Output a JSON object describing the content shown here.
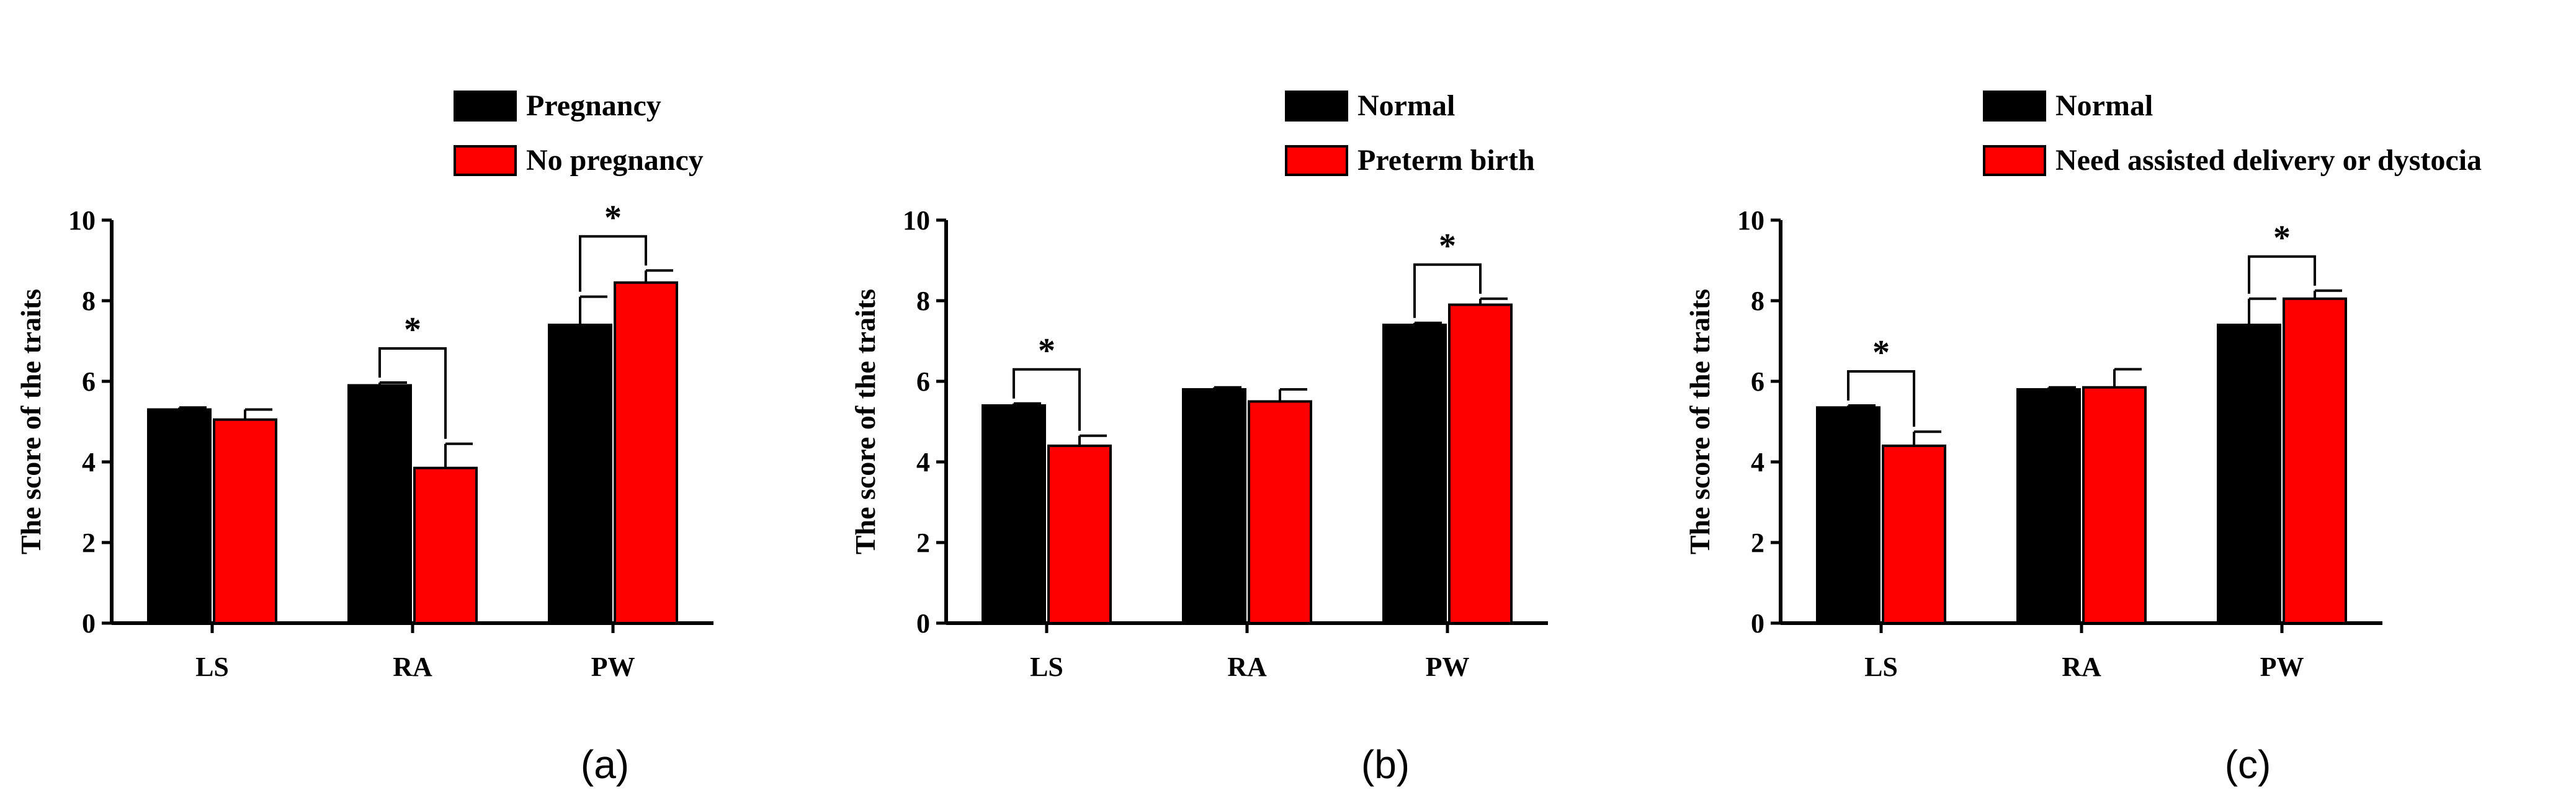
{
  "colors": {
    "series1": "#000000",
    "series2": "#ff0000",
    "axis": "#000000"
  },
  "chart_data": [
    {
      "type": "bar",
      "panel_label": "(a)",
      "ylabel": "The score of the traits",
      "ylim": [
        0,
        10
      ],
      "yticks": [
        "0",
        "2",
        "4",
        "6",
        "8",
        "10"
      ],
      "categories": [
        "LS",
        "RA",
        "PW"
      ],
      "series": [
        {
          "name": "Pregnancy",
          "values": [
            5.3,
            5.9,
            7.4
          ],
          "errors": [
            0.05,
            0.07,
            0.7
          ]
        },
        {
          "name": "No pregnancy",
          "values": [
            5.05,
            3.85,
            8.45
          ],
          "errors": [
            0.25,
            0.6,
            0.3
          ]
        }
      ],
      "significance": [
        {
          "category": "RA",
          "label": "*"
        },
        {
          "category": "PW",
          "label": "*"
        }
      ],
      "legend_position": "top-right"
    },
    {
      "type": "bar",
      "panel_label": "(b)",
      "ylabel": "The score of the traits",
      "ylim": [
        0,
        10
      ],
      "yticks": [
        "0",
        "2",
        "4",
        "6",
        "8",
        "10"
      ],
      "categories": [
        "LS",
        "RA",
        "PW"
      ],
      "series": [
        {
          "name": "Normal",
          "values": [
            5.4,
            5.8,
            7.4
          ],
          "errors": [
            0.05,
            0.05,
            0.05
          ]
        },
        {
          "name": "Preterm birth",
          "values": [
            4.4,
            5.5,
            7.9
          ],
          "errors": [
            0.25,
            0.3,
            0.15
          ]
        }
      ],
      "significance": [
        {
          "category": "LS",
          "label": "*"
        },
        {
          "category": "PW",
          "label": "*"
        }
      ],
      "legend_position": "top-right"
    },
    {
      "type": "bar",
      "panel_label": "(c)",
      "ylabel": "The score of the traits",
      "ylim": [
        0,
        10
      ],
      "yticks": [
        "0",
        "2",
        "4",
        "6",
        "8",
        "10"
      ],
      "categories": [
        "LS",
        "RA",
        "PW"
      ],
      "series": [
        {
          "name": "Normal",
          "values": [
            5.35,
            5.8,
            7.4
          ],
          "errors": [
            0.05,
            0.05,
            0.65
          ]
        },
        {
          "name": "Need assisted delivery or dystocia",
          "values": [
            4.4,
            5.85,
            8.05
          ],
          "errors": [
            0.35,
            0.45,
            0.2
          ]
        }
      ],
      "significance": [
        {
          "category": "LS",
          "label": "*"
        },
        {
          "category": "PW",
          "label": "*"
        }
      ],
      "legend_position": "top-right"
    }
  ]
}
